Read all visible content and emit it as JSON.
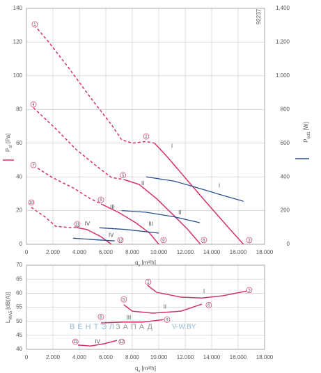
{
  "chart_data": [
    {
      "type": "line",
      "x_label": {
        "main": "q",
        "sub": "v",
        "unit": "[m³/h]"
      },
      "y_label": {
        "main": "P",
        "sub": "sf",
        "unit": "[Pa]"
      },
      "y2_label": {
        "main": "P",
        "sub": "ed1",
        "unit": "[W]"
      },
      "id_text": "92237",
      "xlim": [
        0,
        18000
      ],
      "xticks": [
        0,
        {
          "value": 2000,
          "label": "2.000"
        },
        {
          "value": 4000,
          "label": "4.000"
        },
        {
          "value": 6000,
          "label": "6.000"
        },
        {
          "value": 8000,
          "label": "8.000"
        },
        {
          "value": 10000,
          "label": "10.000"
        },
        {
          "value": 12000,
          "label": "12.000"
        },
        {
          "value": 14000,
          "label": "14.000"
        },
        {
          "value": 16000,
          "label": "16.000"
        },
        {
          "value": 18000,
          "label": "18.000"
        }
      ],
      "ylim": [
        0,
        140
      ],
      "yticks": [
        0,
        20,
        40,
        60,
        80,
        100,
        120,
        140
      ],
      "y2lim": [
        0,
        1400
      ],
      "y2ticks": [
        0,
        200,
        400,
        600,
        800,
        {
          "value": 1000,
          "label": "1.000"
        },
        {
          "value": 1200,
          "label": "1.200"
        },
        {
          "value": 1400,
          "label": "1.400"
        }
      ],
      "grid": true,
      "series": [
        {
          "name": "I",
          "color": "#d4306f",
          "label_x": 11000,
          "label_y": 58,
          "segments": [
            {
              "style": "dashed",
              "x": [
                600,
                1680,
                3260,
                4840,
                6420,
                7200,
                8000,
                9050,
                9680
              ],
              "values": [
                130,
                120,
                104,
                87,
                71,
                62,
                60,
                61,
                60
              ]
            },
            {
              "style": "solid",
              "x": [
                9680,
                10630,
                12200,
                13800,
                15400,
                16400
              ],
              "values": [
                60,
                52,
                37.6,
                23,
                8.7,
                0
              ]
            }
          ]
        },
        {
          "name": "II",
          "color": "#d4306f",
          "label_x": 8800,
          "label_y": 36,
          "segments": [
            {
              "style": "dashed",
              "x": [
                530,
                2210,
                3790,
                5360,
                6420,
                7360
              ],
              "values": [
                81,
                68.6,
                56,
                46,
                39.6,
                38.4
              ]
            },
            {
              "style": "solid",
              "x": [
                7360,
                8520,
                9840,
                11150,
                12200,
                13150
              ],
              "values": [
                38.4,
                35.5,
                27,
                17,
                8.7,
                0
              ]
            }
          ]
        },
        {
          "name": "III",
          "color": "#d4306f",
          "label_x": 6500,
          "label_y": 22,
          "segments": [
            {
              "style": "dashed",
              "x": [
                530,
                1950,
                3520,
                4840,
                5630
              ],
              "values": [
                46.7,
                39.6,
                33.5,
                27,
                24
              ]
            },
            {
              "style": "solid",
              "x": [
                5630,
                6940,
                8260,
                9310,
                10000
              ],
              "values": [
                24,
                19,
                12.8,
                6.6,
                0
              ]
            }
          ]
        },
        {
          "name": "IV",
          "color": "#d4306f",
          "label_x": 4600,
          "label_y": 12,
          "segments": [
            {
              "style": "dashed",
              "x": [
                370,
                1420,
                2210,
                3260,
                3790
              ],
              "values": [
                21.9,
                16.1,
                10.7,
                9.9,
                9.9
              ]
            },
            {
              "style": "solid",
              "x": [
                3790,
                4580,
                5630,
                6420
              ],
              "values": [
                9.9,
                8.7,
                4.5,
                0
              ]
            }
          ]
        },
        {
          "name": "I",
          "color": "#2c4f8c",
          "axis": "y2",
          "label_x": 14580,
          "label_y": 345,
          "segments": [
            {
              "style": "solid",
              "x": [
                9050,
                11150,
                12730,
                14840,
                16400
              ],
              "values": [
                400,
                375,
                340,
                290,
                255
              ]
            }
          ]
        },
        {
          "name": "II",
          "color": "#2c4f8c",
          "axis": "y2",
          "label_x": 11600,
          "label_y": 186,
          "segments": [
            {
              "style": "solid",
              "x": [
                7200,
                9050,
                11150,
                13100
              ],
              "values": [
                200,
                190,
                163,
                128
              ]
            }
          ]
        },
        {
          "name": "III",
          "color": "#2c4f8c",
          "axis": "y2",
          "label_x": 9400,
          "label_y": 118,
          "segments": [
            {
              "style": "solid",
              "x": [
                5520,
                7470,
                10000
              ],
              "values": [
                98,
                88,
                66
              ]
            }
          ]
        },
        {
          "name": "IV",
          "color": "#2c4f8c",
          "axis": "y2",
          "label_x": 6400,
          "label_y": 52,
          "segments": [
            {
              "style": "solid",
              "x": [
                3520,
                5370,
                6680
              ],
              "values": [
                36,
                26,
                20
              ]
            }
          ]
        }
      ],
      "annotations": [
        {
          "text": "1",
          "x": 630,
          "y": 130.5
        },
        {
          "text": "2",
          "x": 9050,
          "y": 64
        },
        {
          "text": "3",
          "x": 16840,
          "y": 2.5
        },
        {
          "text": "4",
          "x": 530,
          "y": 83
        },
        {
          "text": "5",
          "x": 7300,
          "y": 41
        },
        {
          "text": "6",
          "x": 13420,
          "y": 2.5
        },
        {
          "text": "7",
          "x": 530,
          "y": 47
        },
        {
          "text": "8",
          "x": 5630,
          "y": 26.4
        },
        {
          "text": "9",
          "x": 10360,
          "y": 2.5
        },
        {
          "text": "10",
          "x": 370,
          "y": 24.8
        },
        {
          "text": "11",
          "x": 3840,
          "y": 12
        },
        {
          "text": "12",
          "x": 7100,
          "y": 2.5
        }
      ]
    },
    {
      "type": "line",
      "x_label": {
        "main": "q",
        "sub": "v",
        "unit": "[m³/h]"
      },
      "y_label": {
        "main": "L",
        "sub": "WA5",
        "unit": "[dB(A)]"
      },
      "xlim": [
        0,
        18000
      ],
      "xticks": [
        0,
        {
          "value": 2000,
          "label": "2.000"
        },
        {
          "value": 4000,
          "label": "4.000"
        },
        {
          "value": 6000,
          "label": "6.000"
        },
        {
          "value": 8000,
          "label": "8.000"
        },
        {
          "value": 10000,
          "label": "10.000"
        },
        {
          "value": 12000,
          "label": "12.000"
        },
        {
          "value": 14000,
          "label": "14.000"
        },
        {
          "value": 16000,
          "label": "16.000"
        },
        {
          "value": 18000,
          "label": "18.000"
        }
      ],
      "ylim": [
        40,
        70
      ],
      "yticks": [
        40,
        45,
        50,
        55,
        60,
        65,
        70
      ],
      "grid": true,
      "series": [
        {
          "name": "I",
          "color": "#d4306f",
          "label_x": 13420,
          "label_y": 60.6,
          "segments": [
            {
              "style": "solid",
              "x": [
                9150,
                9840,
                11680,
                13260,
                14840,
                16680
              ],
              "values": [
                62.8,
                60.3,
                58.6,
                58.3,
                59.1,
                60.8
              ]
            }
          ]
        },
        {
          "name": "II",
          "color": "#d4306f",
          "label_x": 10470,
          "label_y": 55,
          "segments": [
            {
              "style": "solid",
              "x": [
                7360,
                8000,
                9570,
                11680,
                13260
              ],
              "values": [
                55.9,
                53.6,
                52.9,
                53.6,
                56.1
              ]
            }
          ]
        },
        {
          "name": "III",
          "color": "#d4306f",
          "label_x": 7730,
          "label_y": 51.2,
          "segments": [
            {
              "style": "solid",
              "x": [
                5630,
                7200,
                8780,
                10360
              ],
              "values": [
                49.4,
                49.7,
                49.7,
                50.6
              ]
            }
          ]
        },
        {
          "name": "IV",
          "color": "#d4306f",
          "label_x": 5370,
          "label_y": 42.6,
          "segments": [
            {
              "style": "solid",
              "x": [
                3890,
                4840,
                5890,
                6840
              ],
              "values": [
                41.5,
                41.2,
                42,
                43.2
              ]
            }
          ]
        }
      ],
      "annotations": [
        {
          "text": "2",
          "x": 9200,
          "y": 64
        },
        {
          "text": "3",
          "x": 16840,
          "y": 61.1
        },
        {
          "text": "5",
          "x": 7360,
          "y": 57.8
        },
        {
          "text": "6",
          "x": 13780,
          "y": 55.8
        },
        {
          "text": "8",
          "x": 5630,
          "y": 51.6
        },
        {
          "text": "9",
          "x": 10630,
          "y": 50.6
        },
        {
          "text": "11",
          "x": 3700,
          "y": 42.7
        },
        {
          "text": "12",
          "x": 7200,
          "y": 42.7
        }
      ]
    }
  ],
  "watermark": {
    "part1": "ВЕНТЭЛ",
    "part2": "ЗАПАД",
    "site": "V-W.BY"
  }
}
